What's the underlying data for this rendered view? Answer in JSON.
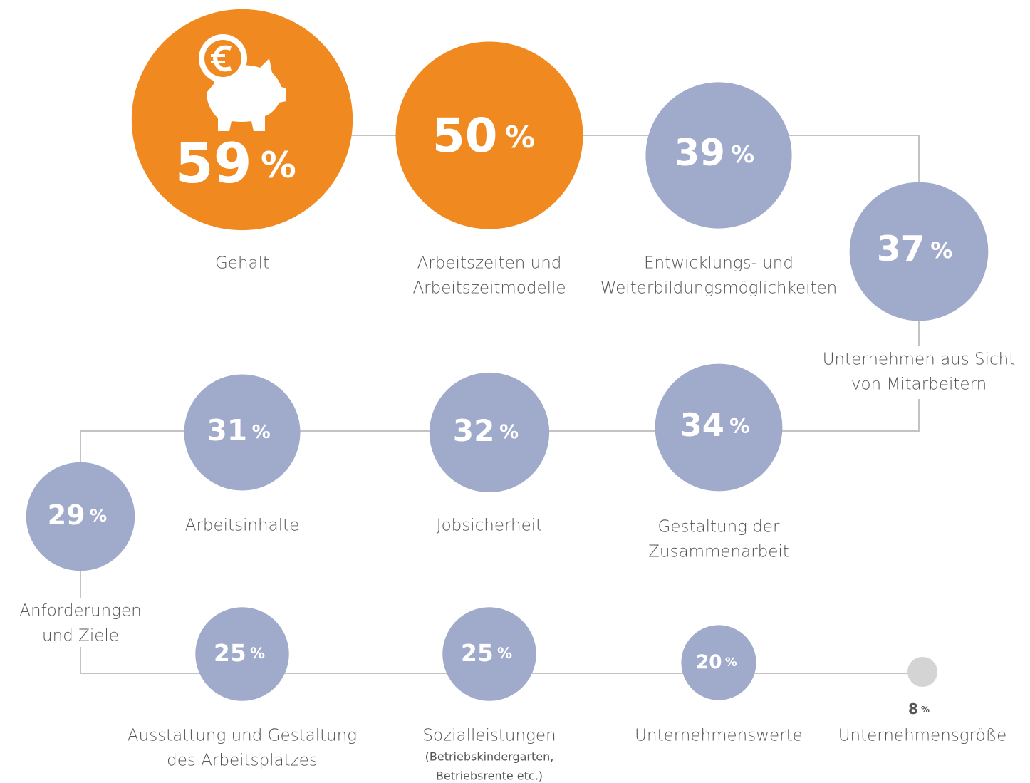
{
  "chart_data": {
    "type": "bubble",
    "unit": "%",
    "categories": [
      [
        "Gehalt"
      ],
      [
        "Arbeitszeiten und",
        "Arbeitszeitmodelle"
      ],
      [
        "Entwicklungs- und",
        "Weiterbildungsmöglichkeiten"
      ],
      [
        "Unternehmen aus Sicht",
        "von Mitarbeitern"
      ],
      [
        "Gestaltung der",
        "Zusammenarbeit"
      ],
      [
        "Jobsicherheit"
      ],
      [
        "Arbeitsinhalte"
      ],
      [
        "Anforderungen",
        "und Ziele"
      ],
      [
        "Ausstattung und Gestaltung",
        "des Arbeitsplatzes"
      ],
      [
        "Sozialleistungen"
      ],
      [
        "Unternehmenswerte"
      ],
      [
        "Unternehmensgröße"
      ]
    ],
    "category_notes": {
      "9": [
        "(Betriebskindergarten,",
        "Betriebsrente etc.)"
      ]
    },
    "values": [
      59,
      50,
      39,
      37,
      34,
      32,
      31,
      29,
      25,
      25,
      20,
      8
    ],
    "colors": [
      "#f08a20",
      "#f08a20",
      "#a0aacb",
      "#a0aacb",
      "#a0aacb",
      "#a0aacb",
      "#a0aacb",
      "#a0aacb",
      "#a0aacb",
      "#a0aacb",
      "#a0aacb",
      "#d4d4d4"
    ]
  }
}
